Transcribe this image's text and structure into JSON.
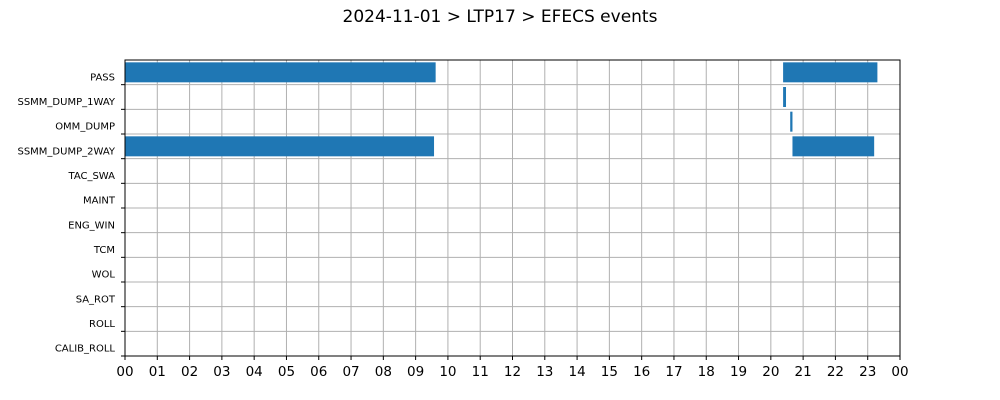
{
  "chart_data": {
    "type": "bar",
    "orientation": "horizontal-timeline",
    "title": "2024-11-01 > LTP17 > EFECS events",
    "xlabel": "",
    "ylabel": "",
    "xlim": [
      0,
      24
    ],
    "x_ticks": [
      "00",
      "01",
      "02",
      "03",
      "04",
      "05",
      "06",
      "07",
      "08",
      "09",
      "10",
      "11",
      "12",
      "13",
      "14",
      "15",
      "16",
      "17",
      "18",
      "19",
      "20",
      "21",
      "22",
      "23",
      "00"
    ],
    "categories": [
      "PASS",
      "SSMM_DUMP_1WAY",
      "OMM_DUMP",
      "SSMM_DUMP_2WAY",
      "TAC_SWA",
      "MAINT",
      "ENG_WIN",
      "TCM",
      "WOL",
      "SA_ROT",
      "ROLL",
      "CALIB_ROLL"
    ],
    "grid": true,
    "legend": "none",
    "color": "#1f77b4",
    "series": [
      {
        "category": "PASS",
        "intervals": [
          [
            0.0,
            9.62
          ],
          [
            20.38,
            23.3
          ]
        ]
      },
      {
        "category": "SSMM_DUMP_1WAY",
        "intervals": [
          [
            20.38,
            20.47
          ]
        ]
      },
      {
        "category": "OMM_DUMP",
        "intervals": [
          [
            20.6,
            20.67
          ]
        ]
      },
      {
        "category": "SSMM_DUMP_2WAY",
        "intervals": [
          [
            0.0,
            9.57
          ],
          [
            20.67,
            23.2
          ]
        ]
      },
      {
        "category": "TAC_SWA",
        "intervals": []
      },
      {
        "category": "MAINT",
        "intervals": []
      },
      {
        "category": "ENG_WIN",
        "intervals": []
      },
      {
        "category": "TCM",
        "intervals": []
      },
      {
        "category": "WOL",
        "intervals": []
      },
      {
        "category": "SA_ROT",
        "intervals": []
      },
      {
        "category": "ROLL",
        "intervals": []
      },
      {
        "category": "CALIB_ROLL",
        "intervals": []
      }
    ]
  }
}
